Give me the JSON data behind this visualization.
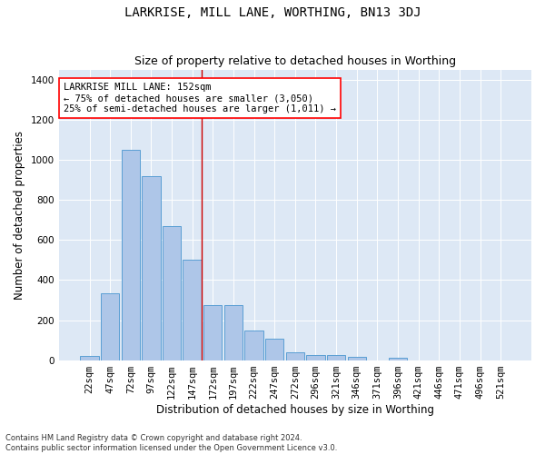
{
  "title": "LARKRISE, MILL LANE, WORTHING, BN13 3DJ",
  "subtitle": "Size of property relative to detached houses in Worthing",
  "xlabel": "Distribution of detached houses by size in Worthing",
  "ylabel": "Number of detached properties",
  "categories": [
    "22sqm",
    "47sqm",
    "72sqm",
    "97sqm",
    "122sqm",
    "147sqm",
    "172sqm",
    "197sqm",
    "222sqm",
    "247sqm",
    "272sqm",
    "296sqm",
    "321sqm",
    "346sqm",
    "371sqm",
    "396sqm",
    "421sqm",
    "446sqm",
    "471sqm",
    "496sqm",
    "521sqm"
  ],
  "values": [
    22,
    335,
    1050,
    920,
    670,
    500,
    275,
    275,
    150,
    105,
    40,
    25,
    25,
    18,
    0,
    12,
    0,
    0,
    0,
    0,
    0
  ],
  "bar_color": "#aec6e8",
  "bar_edge_color": "#5a9fd4",
  "background_color": "#dde8f5",
  "ylim": [
    0,
    1450
  ],
  "yticks": [
    0,
    200,
    400,
    600,
    800,
    1000,
    1200,
    1400
  ],
  "vline_color": "#cc0000",
  "annotation_box_text": "LARKRISE MILL LANE: 152sqm\n← 75% of detached houses are smaller (3,050)\n25% of semi-detached houses are larger (1,011) →",
  "footer_text": "Contains HM Land Registry data © Crown copyright and database right 2024.\nContains public sector information licensed under the Open Government Licence v3.0.",
  "title_fontsize": 10,
  "subtitle_fontsize": 9,
  "axis_label_fontsize": 8.5,
  "tick_fontsize": 7.5,
  "annotation_fontsize": 7.5
}
